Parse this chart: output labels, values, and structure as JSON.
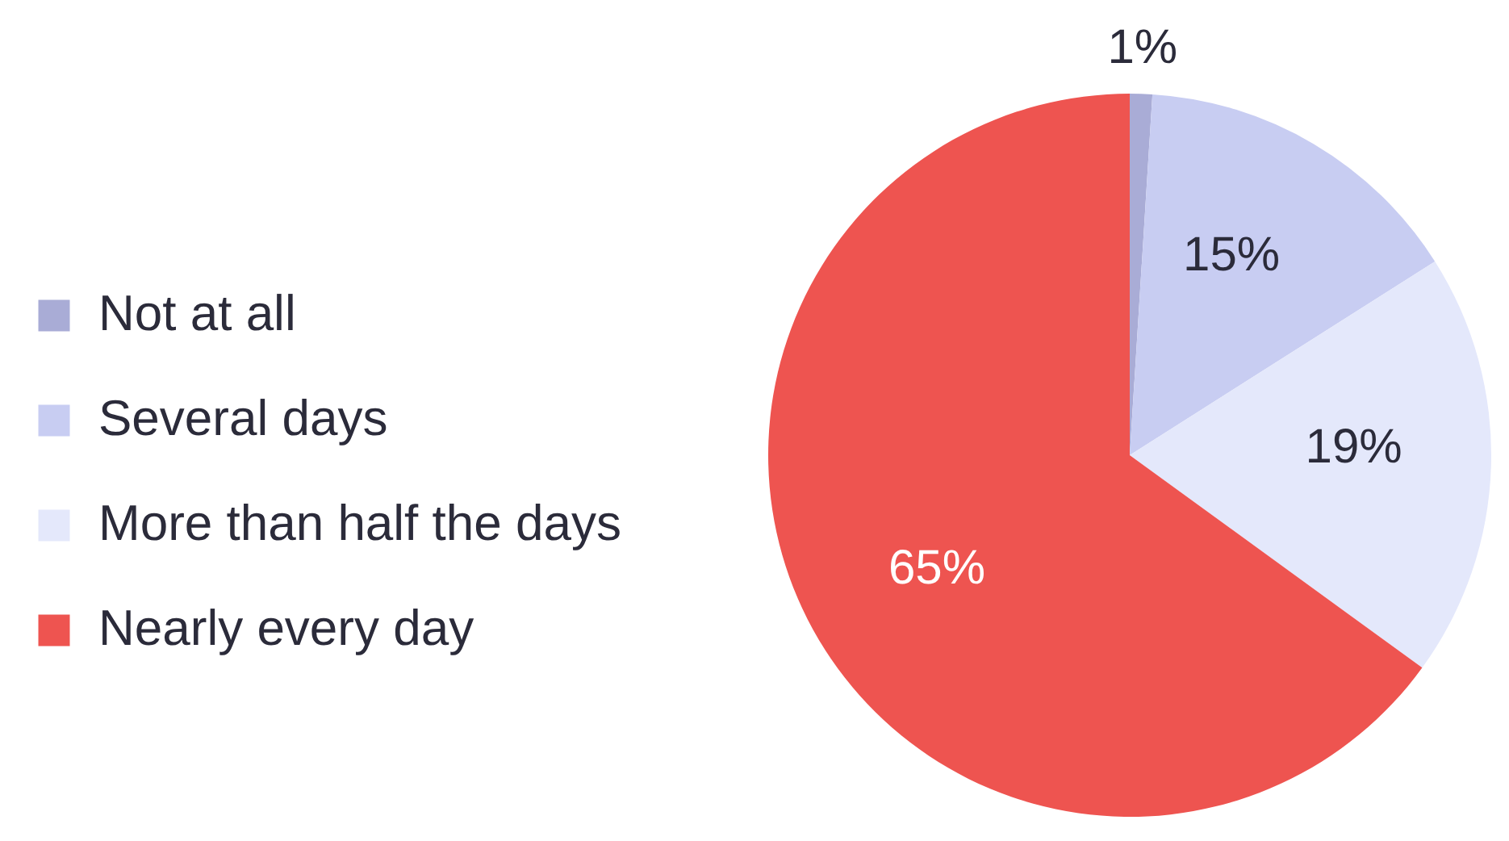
{
  "chart_data": {
    "type": "pie",
    "categories": [
      "Not at all",
      "Several days",
      "More than half the days",
      "Nearly every day"
    ],
    "values": [
      1,
      15,
      19,
      65
    ],
    "colors": [
      "#a9acd6",
      "#c8cdf2",
      "#e4e8fb",
      "#ee5450"
    ],
    "value_labels": [
      "1%",
      "15%",
      "19%",
      "65%"
    ],
    "legend": "left"
  }
}
